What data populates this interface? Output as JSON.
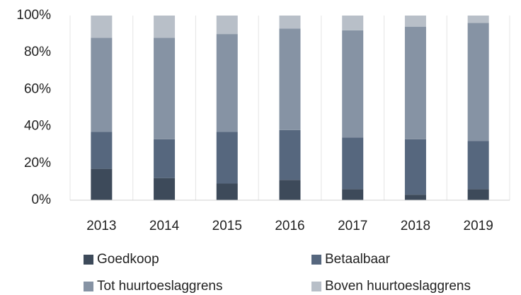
{
  "chart_data": {
    "type": "stacked_bar",
    "categories": [
      "2013",
      "2014",
      "2015",
      "2016",
      "2017",
      "2018",
      "2019"
    ],
    "series": [
      {
        "name": "Goedkoop",
        "color": "#3d4a5a",
        "values": [
          17,
          12,
          9,
          11,
          6,
          3,
          6
        ]
      },
      {
        "name": "Betaalbaar",
        "color": "#56677e",
        "values": [
          20,
          21,
          28,
          27,
          28,
          30,
          26
        ]
      },
      {
        "name": "Tot huurtoeslaggrens",
        "color": "#8693a4",
        "values": [
          51,
          55,
          53,
          55,
          58,
          61,
          64
        ]
      },
      {
        "name": "Boven huurtoeslaggrens",
        "color": "#b8bfc8",
        "values": [
          12,
          12,
          10,
          7,
          8,
          6,
          4
        ]
      }
    ],
    "ylim": [
      0,
      100
    ],
    "yticks": [
      {
        "value": 0,
        "label": "0%"
      },
      {
        "value": 20,
        "label": "20%"
      },
      {
        "value": 40,
        "label": "40%"
      },
      {
        "value": 60,
        "label": "60%"
      },
      {
        "value": 80,
        "label": "80%"
      },
      {
        "value": 100,
        "label": "100%"
      }
    ],
    "grid": false
  }
}
